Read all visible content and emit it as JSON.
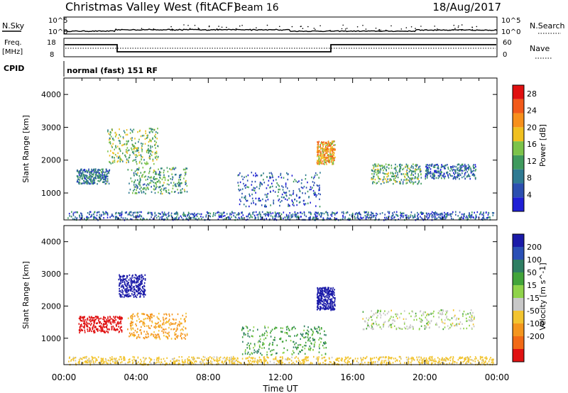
{
  "header": {
    "station": "Christmas Valley West (fitACF)",
    "beam": "Beam 16",
    "date": "18/Aug/2017"
  },
  "noise_panel": {
    "left_label": "N.Sky",
    "right_label": "N.Search",
    "left_ticks": [
      "10^5",
      "10^0"
    ],
    "right_ticks": [
      "10^5",
      "10^0"
    ]
  },
  "freq_panel": {
    "left_label_top": "Freq.",
    "left_label_bottom": "[MHz]",
    "right_label": "Nave",
    "left_ticks": [
      "18",
      "8"
    ],
    "right_ticks": [
      "60",
      "0"
    ]
  },
  "cpid": {
    "label": "CPID",
    "value": "normal (fast) 151 RF"
  },
  "x_axis": {
    "label": "Time UT",
    "ticks": [
      "00:00",
      "04:00",
      "08:00",
      "12:00",
      "16:00",
      "20:00",
      "00:00"
    ]
  },
  "colors": {
    "power_scale": [
      "#1f1fd6",
      "#2c4fb0",
      "#2f7a92",
      "#3f9a5e",
      "#7cc34a",
      "#f0c020",
      "#f7901c",
      "#f25a1a",
      "#e01010"
    ],
    "velocity_scale": [
      "#1a1aa8",
      "#2a4fb5",
      "#2f7e63",
      "#42a43a",
      "#8fd34a",
      "#c8c8c8",
      "#f2c430",
      "#f4961e",
      "#f26a16",
      "#e01212"
    ]
  },
  "chart_data": [
    {
      "type": "heatmap",
      "quantity": "Power",
      "title": "",
      "xlabel": "Time UT",
      "ylabel": "Slant Range [km]",
      "xlim": [
        0,
        24
      ],
      "ylim": [
        180,
        4500
      ],
      "y_ticks": [
        1000,
        2000,
        3000,
        4000
      ],
      "colorbar": {
        "label": "Power [dB]",
        "range": [
          0,
          30
        ],
        "ticks": [
          4,
          8,
          12,
          16,
          20,
          24,
          28
        ]
      },
      "features": [
        {
          "t_start": 0.2,
          "t_end": 23.8,
          "r_start": 200,
          "r_end": 450,
          "level": 6
        },
        {
          "t_start": 0.7,
          "t_end": 2.5,
          "r_start": 1300,
          "r_end": 1750,
          "level": 8
        },
        {
          "t_start": 2.4,
          "t_end": 5.2,
          "r_start": 1900,
          "r_end": 3000,
          "level": 14
        },
        {
          "t_start": 3.5,
          "t_end": 6.8,
          "r_start": 1000,
          "r_end": 1800,
          "level": 11
        },
        {
          "t_start": 9.6,
          "t_end": 14.2,
          "r_start": 600,
          "r_end": 1650,
          "level": 6
        },
        {
          "t_start": 14.0,
          "t_end": 15.0,
          "r_start": 1900,
          "r_end": 2600,
          "level": 20
        },
        {
          "t_start": 17.0,
          "t_end": 19.8,
          "r_start": 1300,
          "r_end": 1900,
          "level": 12
        },
        {
          "t_start": 20.0,
          "t_end": 22.8,
          "r_start": 1450,
          "r_end": 1900,
          "level": 7
        }
      ]
    },
    {
      "type": "heatmap",
      "quantity": "Velocity",
      "title": "",
      "xlabel": "Time UT",
      "ylabel": "Slant Range [km]",
      "xlim": [
        0,
        24
      ],
      "ylim": [
        180,
        4500
      ],
      "y_ticks": [
        1000,
        2000,
        3000,
        4000
      ],
      "colorbar": {
        "label": "Velocity [m s^-1]",
        "ticks": [
          200,
          100,
          50,
          15,
          -15,
          -50,
          -100,
          -200
        ]
      },
      "features": [
        {
          "t_start": 0.2,
          "t_end": 23.8,
          "r_start": 200,
          "r_end": 450,
          "velocity": -30
        },
        {
          "t_start": 0.8,
          "t_end": 3.2,
          "r_start": 1200,
          "r_end": 1700,
          "velocity": -200
        },
        {
          "t_start": 3.0,
          "t_end": 4.5,
          "r_start": 2300,
          "r_end": 3000,
          "velocity": 200
        },
        {
          "t_start": 3.5,
          "t_end": 6.8,
          "r_start": 1000,
          "r_end": 1800,
          "velocity": -60
        },
        {
          "t_start": 9.8,
          "t_end": 14.5,
          "r_start": 500,
          "r_end": 1400,
          "velocity": 25
        },
        {
          "t_start": 14.0,
          "t_end": 15.0,
          "r_start": 1900,
          "r_end": 2600,
          "velocity": 200
        },
        {
          "t_start": 16.5,
          "t_end": 22.8,
          "r_start": 1300,
          "r_end": 1900,
          "velocity": 0
        }
      ]
    }
  ]
}
